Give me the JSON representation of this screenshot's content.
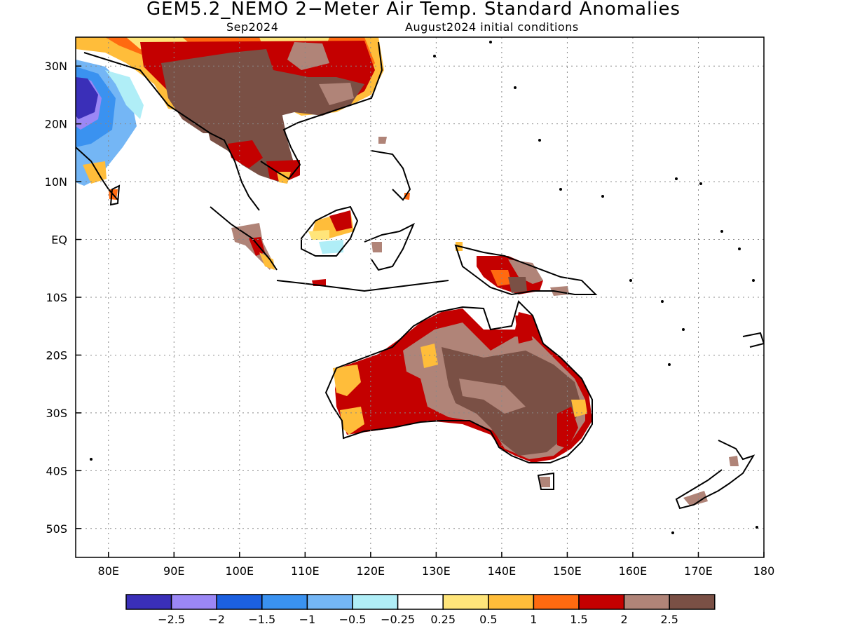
{
  "title": "GEM5.2_NEMO 2−Meter Air Temp. Standard Anomalies",
  "subtitle_left": "Sep2024",
  "subtitle_right": "August2024 initial conditions",
  "map": {
    "lon_range": [
      75,
      180
    ],
    "lat_range": [
      -55,
      35
    ],
    "lat_ticks": [
      {
        "value": 30,
        "label": "30N"
      },
      {
        "value": 20,
        "label": "20N"
      },
      {
        "value": 10,
        "label": "10N"
      },
      {
        "value": 0,
        "label": "EQ"
      },
      {
        "value": -10,
        "label": "10S"
      },
      {
        "value": -20,
        "label": "20S"
      },
      {
        "value": -30,
        "label": "30S"
      },
      {
        "value": -40,
        "label": "40S"
      },
      {
        "value": -50,
        "label": "50S"
      }
    ],
    "lon_ticks": [
      {
        "value": 80,
        "label": "80E"
      },
      {
        "value": 90,
        "label": "90E"
      },
      {
        "value": 100,
        "label": "100E"
      },
      {
        "value": 110,
        "label": "110E"
      },
      {
        "value": 120,
        "label": "120E"
      },
      {
        "value": 130,
        "label": "130E"
      },
      {
        "value": 140,
        "label": "140E"
      },
      {
        "value": 150,
        "label": "150E"
      },
      {
        "value": 160,
        "label": "160E"
      },
      {
        "value": 170,
        "label": "170E"
      },
      {
        "value": 180,
        "label": "180"
      }
    ],
    "grid": "dotted"
  },
  "colorbar": {
    "colors": [
      "#3a2fb8",
      "#9b87f5",
      "#1c60e0",
      "#3a92f0",
      "#74b6f5",
      "#b0eef7",
      "#ffffff",
      "#ffe57a",
      "#ffbd3a",
      "#ff6a10",
      "#c40000",
      "#b08478",
      "#7a5045"
    ],
    "labels": [
      "−2.5",
      "−2",
      "−1.5",
      "−1",
      "−0.5",
      "−0.25",
      "0.25",
      "0.5",
      "1",
      "1.5",
      "2",
      "2.5"
    ]
  }
}
